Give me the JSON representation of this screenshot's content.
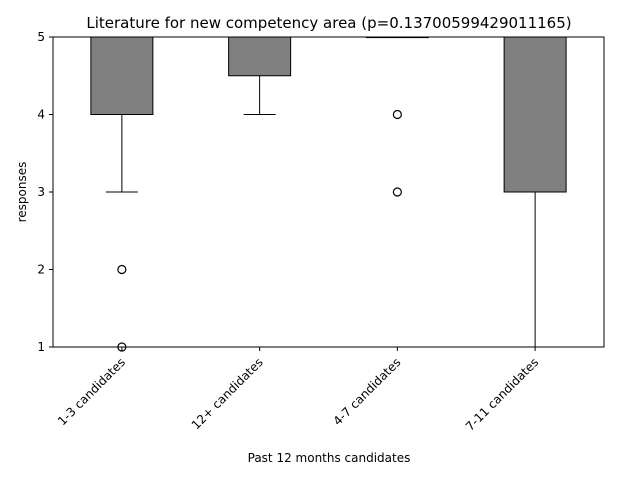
{
  "chart_data": {
    "type": "box",
    "title": "Literature for new competency area (p=0.13700599429011165)",
    "xlabel": "Past 12 months candidates",
    "ylabel": "responses",
    "ylim": [
      1,
      5
    ],
    "yticks": [
      1,
      2,
      3,
      4,
      5
    ],
    "categories": [
      "1-3 candidates",
      "12+ candidates",
      "4-7 candidates",
      "7-11 candidates"
    ],
    "boxes": [
      {
        "category": "1-3 candidates",
        "whisker_low": 3,
        "q1": 4,
        "median": 4,
        "q3": 5,
        "whisker_high": 5,
        "outliers": [
          2,
          1
        ]
      },
      {
        "category": "12+ candidates",
        "whisker_low": 4,
        "q1": 4.5,
        "median": 5,
        "q3": 5,
        "whisker_high": 5,
        "outliers": []
      },
      {
        "category": "4-7 candidates",
        "whisker_low": 5,
        "q1": 5,
        "median": 5,
        "q3": 5,
        "whisker_high": 5,
        "outliers": [
          4,
          3
        ]
      },
      {
        "category": "7-11 candidates",
        "whisker_low": 1,
        "q1": 3,
        "median": 5,
        "q3": 5,
        "whisker_high": 5,
        "outliers": []
      }
    ],
    "box_color": "#808080",
    "grid": false,
    "x_tick_rotation": -45
  }
}
